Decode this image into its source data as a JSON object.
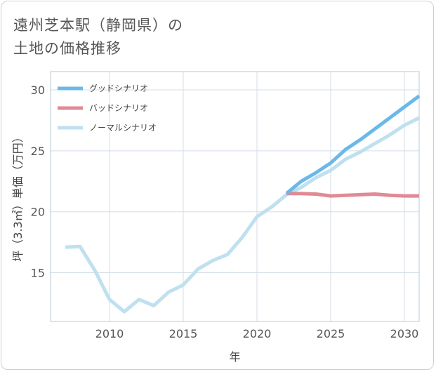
{
  "title_line1": "遠州芝本駅（静岡県）の",
  "title_line2": "土地の価格推移",
  "chart_data": {
    "type": "line",
    "xlabel": "年",
    "ylabel": "坪（3.3㎡）単価（万円）",
    "xlim": [
      2006,
      2031
    ],
    "ylim": [
      11,
      31.5
    ],
    "xticks": [
      2010,
      2015,
      2020,
      2025,
      2030
    ],
    "yticks": [
      15,
      20,
      25,
      30
    ],
    "grid": true,
    "legend_position": "top-left",
    "series": [
      {
        "name": "グッドシナリオ",
        "color": "#6bb8ea",
        "x": [
          2022,
          2023,
          2024,
          2025,
          2026,
          2027,
          2028,
          2029,
          2030,
          2031
        ],
        "y": [
          21.5,
          22.5,
          23.2,
          24.0,
          25.1,
          25.9,
          26.8,
          27.7,
          28.6,
          29.5
        ]
      },
      {
        "name": "バッドシナリオ",
        "color": "#e08a94",
        "x": [
          2022,
          2023,
          2024,
          2025,
          2026,
          2027,
          2028,
          2029,
          2030,
          2031
        ],
        "y": [
          21.5,
          21.5,
          21.45,
          21.3,
          21.35,
          21.4,
          21.45,
          21.35,
          21.3,
          21.3
        ]
      },
      {
        "name": "ノーマルシナリオ",
        "color": "#bfe0ef",
        "x": [
          2007,
          2008,
          2009,
          2010,
          2011,
          2012,
          2013,
          2014,
          2015,
          2016,
          2017,
          2018,
          2019,
          2020,
          2021,
          2022,
          2023,
          2024,
          2025,
          2026,
          2027,
          2028,
          2029,
          2030,
          2031
        ],
        "y": [
          17.1,
          17.15,
          15.2,
          12.8,
          11.8,
          12.8,
          12.3,
          13.4,
          14.0,
          15.3,
          16.0,
          16.5,
          17.9,
          19.6,
          20.4,
          21.4,
          22.0,
          22.8,
          23.4,
          24.3,
          24.9,
          25.6,
          26.3,
          27.1,
          27.7
        ]
      }
    ]
  }
}
